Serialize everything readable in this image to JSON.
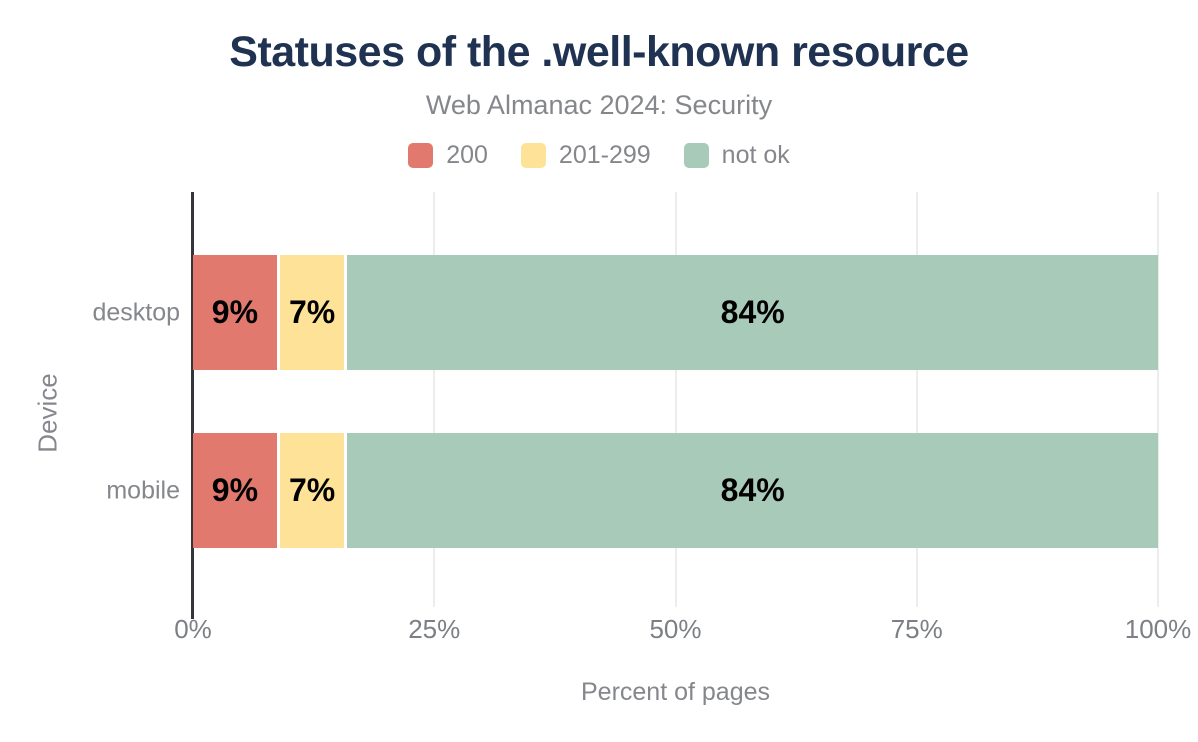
{
  "chart_data": {
    "type": "bar",
    "orientation": "horizontal",
    "stacked": true,
    "title": "Statuses of the .well-known resource",
    "subtitle": "Web Almanac 2024: Security",
    "xlabel": "Percent of pages",
    "ylabel": "Device",
    "xlim": [
      0,
      100
    ],
    "x_ticks": [
      "0%",
      "25%",
      "50%",
      "75%",
      "100%"
    ],
    "x_tick_values": [
      0,
      25,
      50,
      75,
      100
    ],
    "grid": true,
    "legend_position": "top",
    "categories": [
      "desktop",
      "mobile"
    ],
    "series": [
      {
        "name": "200",
        "color": "#e1796f",
        "values": [
          9,
          9
        ],
        "labels": [
          "9%",
          "9%"
        ]
      },
      {
        "name": "201-299",
        "color": "#fde297",
        "values": [
          7,
          7
        ],
        "labels": [
          "7%",
          "7%"
        ]
      },
      {
        "name": "not ok",
        "color": "#a8cab9",
        "values": [
          84,
          84
        ],
        "labels": [
          "84%",
          "84%"
        ]
      }
    ],
    "colors": {
      "title": "#1f3251",
      "muted_text": "#85878c",
      "axis_line": "#33353a",
      "gridline": "#ededed",
      "bar_label": "#000000",
      "background": "#ffffff"
    }
  }
}
